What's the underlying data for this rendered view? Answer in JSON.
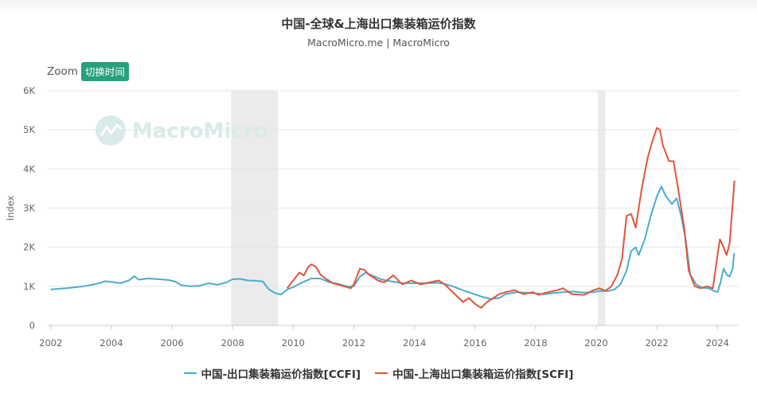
{
  "header": {
    "title": "中国-全球&上海出口集装箱运价指数",
    "subtitle": "MacroMicro.me | MacroMicro"
  },
  "zoom": {
    "label": "Zoom",
    "button_label": "切换时间"
  },
  "watermark": {
    "text": "MacroMicro"
  },
  "colors": {
    "ccfi": "#4bacce",
    "scfi": "#e0543c",
    "accent": "#26a17b",
    "recession": "#ebebeb"
  },
  "chart_data": {
    "type": "line",
    "title": "中国-全球&上海出口集装箱运价指数",
    "subtitle": "MacroMicro.me | MacroMicro",
    "xlabel": "",
    "ylabel": "Index",
    "xlim": [
      2001.9,
      2024.7
    ],
    "ylim": [
      0,
      6000
    ],
    "x_ticks": [
      "2002",
      "2004",
      "2006",
      "2008",
      "2010",
      "2012",
      "2014",
      "2016",
      "2018",
      "2020",
      "2022",
      "2024"
    ],
    "y_ticks": [
      "0",
      "1K",
      "2K",
      "3K",
      "4K",
      "5K",
      "6K"
    ],
    "grid": true,
    "legend_position": "bottom",
    "shaded_ranges": [
      [
        2007.95,
        2009.5
      ],
      [
        2020.05,
        2020.3
      ]
    ],
    "series": [
      {
        "name": "中国-出口集装箱运价指数[CCFI]",
        "color": "#4bacce",
        "points": [
          [
            2002.0,
            920
          ],
          [
            2002.5,
            950
          ],
          [
            2003.0,
            990
          ],
          [
            2003.5,
            1060
          ],
          [
            2003.8,
            1130
          ],
          [
            2004.0,
            1110
          ],
          [
            2004.3,
            1080
          ],
          [
            2004.6,
            1160
          ],
          [
            2004.75,
            1260
          ],
          [
            2004.9,
            1170
          ],
          [
            2005.2,
            1200
          ],
          [
            2005.6,
            1180
          ],
          [
            2005.9,
            1160
          ],
          [
            2006.1,
            1120
          ],
          [
            2006.3,
            1030
          ],
          [
            2006.6,
            1000
          ],
          [
            2006.9,
            1010
          ],
          [
            2007.2,
            1080
          ],
          [
            2007.5,
            1040
          ],
          [
            2007.8,
            1100
          ],
          [
            2008.0,
            1180
          ],
          [
            2008.25,
            1190
          ],
          [
            2008.5,
            1150
          ],
          [
            2008.8,
            1140
          ],
          [
            2009.0,
            1120
          ],
          [
            2009.2,
            920
          ],
          [
            2009.4,
            830
          ],
          [
            2009.6,
            790
          ],
          [
            2009.8,
            920
          ],
          [
            2010.0,
            980
          ],
          [
            2010.3,
            1100
          ],
          [
            2010.6,
            1200
          ],
          [
            2010.9,
            1200
          ],
          [
            2011.2,
            1100
          ],
          [
            2011.5,
            1060
          ],
          [
            2011.8,
            990
          ],
          [
            2012.0,
            1000
          ],
          [
            2012.2,
            1250
          ],
          [
            2012.4,
            1350
          ],
          [
            2012.6,
            1280
          ],
          [
            2012.9,
            1180
          ],
          [
            2013.2,
            1130
          ],
          [
            2013.6,
            1080
          ],
          [
            2014.0,
            1080
          ],
          [
            2014.4,
            1080
          ],
          [
            2014.8,
            1090
          ],
          [
            2015.0,
            1060
          ],
          [
            2015.3,
            990
          ],
          [
            2015.6,
            900
          ],
          [
            2015.9,
            820
          ],
          [
            2016.2,
            740
          ],
          [
            2016.5,
            680
          ],
          [
            2016.8,
            700
          ],
          [
            2017.0,
            800
          ],
          [
            2017.4,
            850
          ],
          [
            2017.8,
            830
          ],
          [
            2018.0,
            820
          ],
          [
            2018.3,
            800
          ],
          [
            2018.6,
            830
          ],
          [
            2018.9,
            850
          ],
          [
            2019.2,
            870
          ],
          [
            2019.6,
            840
          ],
          [
            2019.9,
            850
          ],
          [
            2020.1,
            880
          ],
          [
            2020.4,
            880
          ],
          [
            2020.6,
            920
          ],
          [
            2020.8,
            1050
          ],
          [
            2021.0,
            1400
          ],
          [
            2021.15,
            1900
          ],
          [
            2021.3,
            2000
          ],
          [
            2021.4,
            1800
          ],
          [
            2021.6,
            2200
          ],
          [
            2021.8,
            2800
          ],
          [
            2022.0,
            3300
          ],
          [
            2022.15,
            3550
          ],
          [
            2022.3,
            3300
          ],
          [
            2022.5,
            3100
          ],
          [
            2022.65,
            3250
          ],
          [
            2022.8,
            2800
          ],
          [
            2022.95,
            2200
          ],
          [
            2023.1,
            1300
          ],
          [
            2023.3,
            1050
          ],
          [
            2023.5,
            960
          ],
          [
            2023.7,
            950
          ],
          [
            2023.9,
            880
          ],
          [
            2024.0,
            850
          ],
          [
            2024.1,
            1100
          ],
          [
            2024.2,
            1450
          ],
          [
            2024.3,
            1300
          ],
          [
            2024.4,
            1250
          ],
          [
            2024.5,
            1450
          ],
          [
            2024.55,
            1850
          ]
        ]
      },
      {
        "name": "中国-上海出口集装箱运价指数[SCFI]",
        "color": "#e0543c",
        "points": [
          [
            2009.8,
            950
          ],
          [
            2010.0,
            1150
          ],
          [
            2010.2,
            1350
          ],
          [
            2010.35,
            1280
          ],
          [
            2010.5,
            1500
          ],
          [
            2010.6,
            1560
          ],
          [
            2010.75,
            1500
          ],
          [
            2010.9,
            1300
          ],
          [
            2011.1,
            1180
          ],
          [
            2011.3,
            1080
          ],
          [
            2011.6,
            1020
          ],
          [
            2011.9,
            950
          ],
          [
            2012.0,
            1050
          ],
          [
            2012.2,
            1450
          ],
          [
            2012.35,
            1420
          ],
          [
            2012.5,
            1300
          ],
          [
            2012.8,
            1150
          ],
          [
            2013.0,
            1100
          ],
          [
            2013.3,
            1280
          ],
          [
            2013.6,
            1050
          ],
          [
            2013.9,
            1150
          ],
          [
            2014.2,
            1050
          ],
          [
            2014.5,
            1100
          ],
          [
            2014.8,
            1150
          ],
          [
            2015.0,
            1050
          ],
          [
            2015.2,
            900
          ],
          [
            2015.4,
            750
          ],
          [
            2015.6,
            600
          ],
          [
            2015.8,
            700
          ],
          [
            2016.0,
            550
          ],
          [
            2016.2,
            450
          ],
          [
            2016.4,
            600
          ],
          [
            2016.6,
            700
          ],
          [
            2016.8,
            800
          ],
          [
            2017.0,
            850
          ],
          [
            2017.3,
            900
          ],
          [
            2017.6,
            800
          ],
          [
            2017.9,
            850
          ],
          [
            2018.1,
            780
          ],
          [
            2018.4,
            850
          ],
          [
            2018.7,
            900
          ],
          [
            2018.9,
            950
          ],
          [
            2019.2,
            800
          ],
          [
            2019.6,
            780
          ],
          [
            2019.9,
            900
          ],
          [
            2020.1,
            950
          ],
          [
            2020.3,
            880
          ],
          [
            2020.5,
            1000
          ],
          [
            2020.7,
            1300
          ],
          [
            2020.85,
            1700
          ],
          [
            2021.0,
            2800
          ],
          [
            2021.15,
            2850
          ],
          [
            2021.3,
            2500
          ],
          [
            2021.5,
            3500
          ],
          [
            2021.7,
            4300
          ],
          [
            2021.85,
            4700
          ],
          [
            2022.0,
            5050
          ],
          [
            2022.1,
            5000
          ],
          [
            2022.2,
            4600
          ],
          [
            2022.4,
            4200
          ],
          [
            2022.55,
            4200
          ],
          [
            2022.7,
            3500
          ],
          [
            2022.9,
            2500
          ],
          [
            2023.05,
            1400
          ],
          [
            2023.25,
            1000
          ],
          [
            2023.45,
            950
          ],
          [
            2023.65,
            1000
          ],
          [
            2023.85,
            950
          ],
          [
            2024.0,
            1800
          ],
          [
            2024.08,
            2200
          ],
          [
            2024.2,
            2000
          ],
          [
            2024.3,
            1800
          ],
          [
            2024.4,
            2100
          ],
          [
            2024.5,
            3100
          ],
          [
            2024.56,
            3700
          ]
        ]
      }
    ]
  }
}
